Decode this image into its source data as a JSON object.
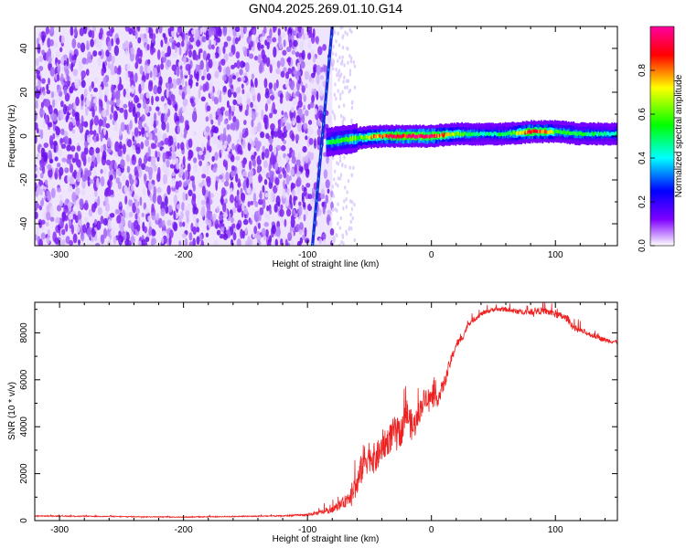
{
  "title": "GN04.2025.269.01.10.G14",
  "chart_data": [
    {
      "type": "heatmap",
      "xlabel": "Height of straight line (km)",
      "ylabel": "Frequency (Hz)",
      "xlim": [
        -320,
        150
      ],
      "ylim": [
        -50,
        50
      ],
      "x_ticks": [
        -300,
        -200,
        -100,
        0,
        100
      ],
      "y_ticks": [
        -40,
        -20,
        0,
        20,
        40
      ],
      "colorbar": {
        "label": "Normalized spectral amplitude",
        "range": [
          0,
          1
        ],
        "ticks": [
          0.0,
          0.2,
          0.4,
          0.6,
          0.8
        ],
        "colormap": [
          "#ffffff",
          "#7f00ff",
          "#0000ff",
          "#00ffff",
          "#00ff00",
          "#ffff00",
          "#ff0000",
          "#ff00a0"
        ]
      },
      "features": {
        "noise_region_x": [
          -320,
          -80
        ],
        "sweep_line": {
          "x": [
            -96,
            -80
          ],
          "y": [
            -50,
            50
          ]
        },
        "carrier_ridge": {
          "x": [
            -85,
            -75,
            -60,
            -40,
            -20,
            0,
            20,
            40,
            60,
            80,
            90,
            100,
            120,
            150
          ],
          "freq": [
            -3,
            -2,
            -1,
            0,
            0,
            0,
            1,
            1,
            1,
            2,
            2,
            2,
            1,
            1
          ],
          "amp": [
            0.5,
            0.55,
            0.6,
            0.85,
            0.95,
            0.95,
            0.6,
            0.45,
            0.5,
            0.9,
            0.85,
            0.55,
            0.5,
            0.45
          ]
        }
      }
    },
    {
      "type": "line",
      "xlabel": "Height of straight line (km)",
      "ylabel": "SNR (10 * v/v)",
      "xlim": [
        -320,
        150
      ],
      "ylim": [
        0,
        9300
      ],
      "x_ticks": [
        -300,
        -200,
        -100,
        0,
        100
      ],
      "y_ticks": [
        0,
        2000,
        4000,
        6000,
        8000
      ],
      "series": [
        {
          "color": "#ee2222",
          "x": [
            -320,
            -200,
            -120,
            -100,
            -80,
            -70,
            -60,
            -55,
            -50,
            -45,
            -40,
            -35,
            -30,
            -25,
            -20,
            -15,
            -10,
            -5,
            0,
            5,
            10,
            15,
            20,
            25,
            30,
            40,
            50,
            60,
            70,
            80,
            90,
            100,
            110,
            115,
            120,
            130,
            140,
            150
          ],
          "y": [
            200,
            150,
            200,
            250,
            450,
            800,
            1500,
            2500,
            2800,
            2600,
            3100,
            3400,
            3800,
            3700,
            4600,
            3900,
            4600,
            5300,
            5200,
            5200,
            5800,
            6700,
            7500,
            7800,
            8400,
            8800,
            9000,
            9000,
            8900,
            8900,
            8950,
            8800,
            8600,
            8200,
            8100,
            7900,
            7700,
            7600
          ],
          "noise": [
            40,
            40,
            50,
            100,
            250,
            500,
            1100,
            1500,
            1400,
            1300,
            1200,
            1200,
            1300,
            1200,
            1300,
            1300,
            1000,
            900,
            800,
            700,
            600,
            500,
            350,
            300,
            250,
            200,
            180,
            200,
            220,
            250,
            300,
            320,
            300,
            300,
            250,
            220,
            200,
            180
          ]
        }
      ]
    }
  ]
}
